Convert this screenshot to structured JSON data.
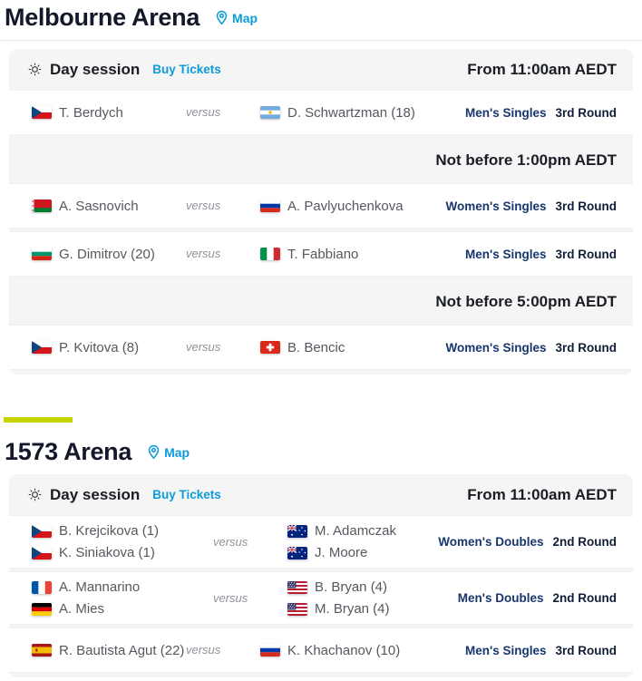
{
  "labels": {
    "versus": "versus"
  },
  "colors": {
    "link_blue": "#0d9cd8",
    "accent_yellow": "#c8d400",
    "event_navy": "#17366d",
    "round_navy": "#101e38",
    "session_bg": "#f5f5f5",
    "player_gray": "#55585f"
  },
  "venues": [
    {
      "name": "Melbourne Arena",
      "map_label": "Map",
      "accent_bar": false,
      "divider": true,
      "sessions": [
        {
          "icon": "sun-icon",
          "label": "Day session",
          "buy_tickets_label": "Buy Tickets",
          "time_note": "From 11:00am AEDT",
          "items": [
            {
              "type": "match",
              "event": "Men's Singles",
              "round": "3rd Round",
              "side1": [
                {
                  "flag": "cz",
                  "name": "T. Berdych"
                }
              ],
              "side2": [
                {
                  "flag": "ar",
                  "name": "D. Schwartzman (18)"
                }
              ]
            },
            {
              "type": "note",
              "text": "Not before 1:00pm AEDT"
            },
            {
              "type": "match",
              "event": "Women's Singles",
              "round": "3rd Round",
              "side1": [
                {
                  "flag": "by",
                  "name": "A. Sasnovich"
                }
              ],
              "side2": [
                {
                  "flag": "ru",
                  "name": "A. Pavlyuchenkova"
                }
              ]
            },
            {
              "type": "match",
              "event": "Men's Singles",
              "round": "3rd Round",
              "side1": [
                {
                  "flag": "bg",
                  "name": "G. Dimitrov (20)"
                }
              ],
              "side2": [
                {
                  "flag": "it",
                  "name": "T. Fabbiano"
                }
              ]
            },
            {
              "type": "note",
              "text": "Not before 5:00pm AEDT"
            },
            {
              "type": "match",
              "event": "Women's Singles",
              "round": "3rd Round",
              "side1": [
                {
                  "flag": "cz",
                  "name": "P. Kvitova (8)"
                }
              ],
              "side2": [
                {
                  "flag": "ch",
                  "name": "B. Bencic"
                }
              ]
            }
          ]
        }
      ]
    },
    {
      "name": "1573 Arena",
      "map_label": "Map",
      "accent_bar": true,
      "divider": false,
      "sessions": [
        {
          "icon": "sun-icon",
          "label": "Day session",
          "buy_tickets_label": "Buy Tickets",
          "time_note": "From 11:00am AEDT",
          "items": [
            {
              "type": "match",
              "event": "Women's Doubles",
              "round": "2nd Round",
              "side1": [
                {
                  "flag": "cz",
                  "name": "B. Krejcikova (1)"
                },
                {
                  "flag": "cz",
                  "name": "K. Siniakova (1)"
                }
              ],
              "side2": [
                {
                  "flag": "au",
                  "name": "M. Adamczak"
                },
                {
                  "flag": "au",
                  "name": "J. Moore"
                }
              ]
            },
            {
              "type": "match",
              "event": "Men's Doubles",
              "round": "2nd Round",
              "side1": [
                {
                  "flag": "fr",
                  "name": "A. Mannarino"
                },
                {
                  "flag": "de",
                  "name": "A. Mies"
                }
              ],
              "side2": [
                {
                  "flag": "us",
                  "name": "B. Bryan (4)"
                },
                {
                  "flag": "us",
                  "name": "M. Bryan (4)"
                }
              ]
            },
            {
              "type": "match",
              "event": "Men's Singles",
              "round": "3rd Round",
              "side1": [
                {
                  "flag": "es",
                  "name": "R. Bautista Agut (22)"
                }
              ],
              "side2": [
                {
                  "flag": "ru",
                  "name": "K. Khachanov (10)"
                }
              ]
            }
          ]
        }
      ]
    }
  ]
}
